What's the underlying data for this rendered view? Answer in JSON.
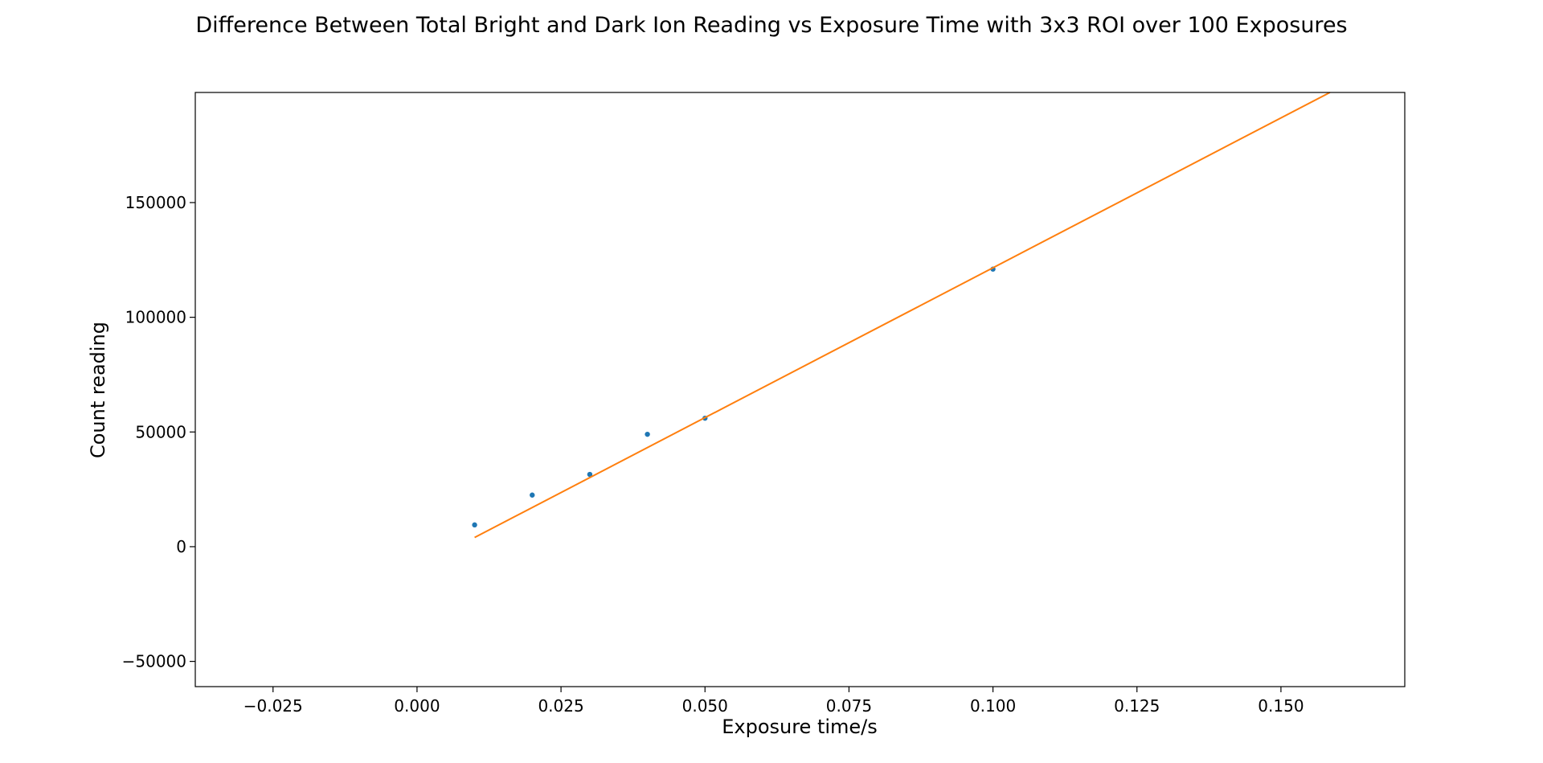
{
  "chart_data": {
    "type": "scatter",
    "title": "Difference Between Total Bright and Dark Ion Reading vs Exposure Time with 3x3 ROI over 100 Exposures",
    "xlabel": "Exposure time/s",
    "ylabel": "Count reading",
    "xlim": [
      -0.0385,
      0.1715
    ],
    "ylim": [
      -61000,
      198000
    ],
    "x_ticks": [
      -0.025,
      0.0,
      0.025,
      0.05,
      0.075,
      0.1,
      0.125,
      0.15
    ],
    "x_tick_labels": [
      "−0.025",
      "0.000",
      "0.025",
      "0.050",
      "0.075",
      "0.100",
      "0.125",
      "0.150"
    ],
    "y_ticks": [
      -50000,
      0,
      50000,
      100000,
      150000
    ],
    "y_tick_labels": [
      "−50000",
      "0",
      "50000",
      "100000",
      "150000"
    ],
    "grid": false,
    "series": [
      {
        "name": "data",
        "kind": "scatter",
        "color": "#1f77b4",
        "x": [
          0.01,
          0.02,
          0.03,
          0.04,
          0.05,
          0.1
        ],
        "y": [
          9500,
          22500,
          31500,
          49000,
          56000,
          121000
        ]
      },
      {
        "name": "fit",
        "kind": "line",
        "color": "#ff7f0e",
        "x": [
          0.01,
          0.1585
        ],
        "y": [
          4000,
          198000
        ]
      }
    ]
  }
}
